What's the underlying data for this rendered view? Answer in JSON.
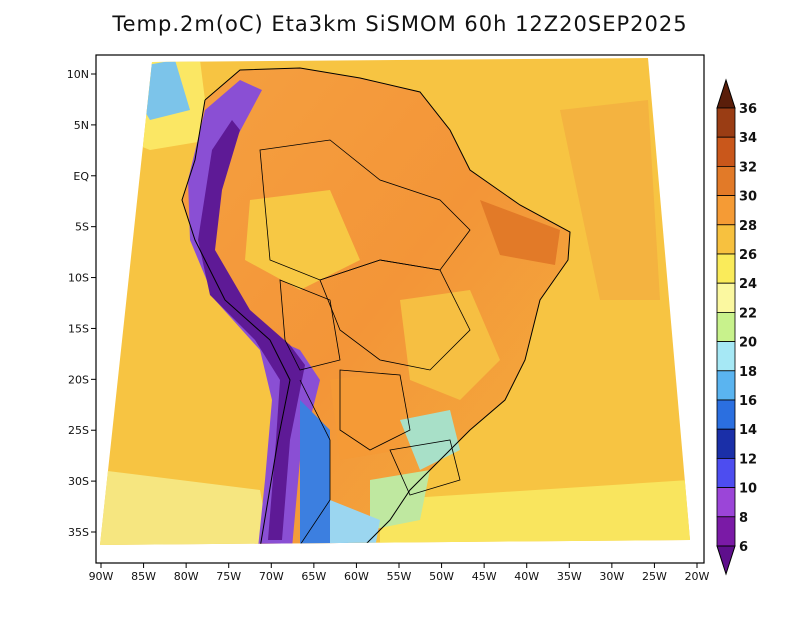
{
  "title": "Temp.2m(oC) Eta3km SiSMOM 60h 12Z20SEP2025",
  "colors": {
    "ocean": "#f7c642",
    "land_hot": "#f39b3a",
    "land_warm": "#f4b240",
    "land_cool": "#f6d64e",
    "frame": "#000000",
    "outside": "#ffffff"
  },
  "axes": {
    "lon_ticks": [
      "90W",
      "85W",
      "80W",
      "75W",
      "70W",
      "65W",
      "60W",
      "55W",
      "50W",
      "45W",
      "40W",
      "35W",
      "30W",
      "25W",
      "20W"
    ],
    "lat_ticks": [
      "10N",
      "5N",
      "EQ",
      "5S",
      "10S",
      "15S",
      "20S",
      "25S",
      "30S",
      "35S"
    ]
  },
  "colorbar": {
    "levels": [
      "36",
      "34",
      "32",
      "30",
      "28",
      "26",
      "24",
      "22",
      "20",
      "18",
      "16",
      "14",
      "12",
      "10",
      "8",
      "6"
    ],
    "colors": [
      "#6b2a10",
      "#9a3d14",
      "#c9571b",
      "#e27a28",
      "#f59b35",
      "#f7c13f",
      "#faeb5a",
      "#fbf8a0",
      "#c8f28c",
      "#a6e8f5",
      "#5ab4f0",
      "#2b6fe0",
      "#1a2fa8",
      "#4d4df0",
      "#9b45d8",
      "#7a1aa6"
    ],
    "top_color": "#5a1e0a",
    "bottom_color": "#5e0f8c"
  }
}
